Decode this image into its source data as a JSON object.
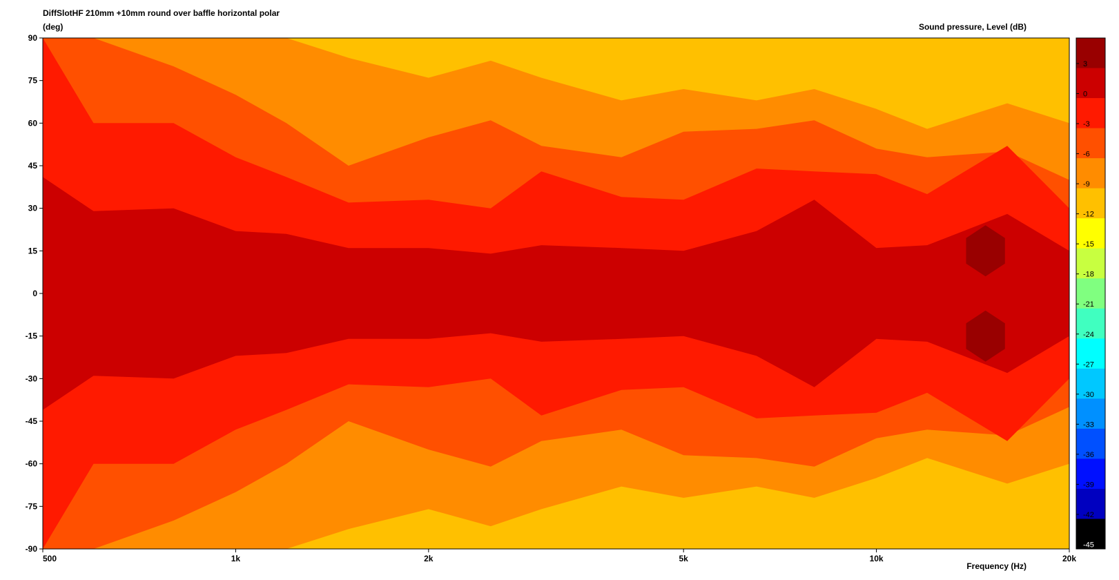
{
  "chart_data": {
    "type": "heatmap",
    "title": "DiffSlotHF 210mm +10mm round over baffle horizontal polar",
    "y_unit_label": "(deg)",
    "xlabel": "Frequency  (Hz)",
    "legend_title": "Sound pressure, Level  (dB)",
    "x_scale": "log",
    "xlim": [
      500,
      20000
    ],
    "ylim": [
      -90,
      90
    ],
    "x_ticks": [
      500,
      1000,
      2000,
      5000,
      10000,
      20000
    ],
    "x_tick_labels": [
      "500",
      "1k",
      "2k",
      "5k",
      "10k",
      "20k"
    ],
    "y_ticks": [
      90,
      75,
      60,
      45,
      30,
      15,
      0,
      -15,
      -30,
      -45,
      -60,
      -75,
      -90
    ],
    "y_tick_labels": [
      "90",
      "75",
      "60",
      "45",
      "30",
      "15",
      "0",
      "-15",
      "-30",
      "-45",
      "-60",
      "-75",
      "-90"
    ],
    "colorbar": {
      "levels": [
        3,
        0,
        -3,
        -6,
        -9,
        -12,
        -15,
        -18,
        -21,
        -24,
        -27,
        -30,
        -33,
        -36,
        -39,
        -42,
        -45
      ],
      "labels": [
        "3",
        "0",
        "-3",
        "-6",
        "-9",
        "-12",
        "-15",
        "-18",
        "-21",
        "-24",
        "-27",
        "-30",
        "-33",
        "-36",
        "-39",
        "-42",
        "-45"
      ],
      "colors": [
        "#990000",
        "#cc0000",
        "#ff1a00",
        "#ff5000",
        "#ff8c00",
        "#ffc000",
        "#ffff00",
        "#c8ff40",
        "#80ff80",
        "#40ffc0",
        "#00ffff",
        "#00c8ff",
        "#0090ff",
        "#0050ff",
        "#0010ff",
        "#0000c0",
        "#000000"
      ]
    },
    "contours": {
      "frequencies_hz": [
        500,
        600,
        800,
        1000,
        1200,
        1500,
        2000,
        2500,
        3000,
        4000,
        5000,
        6500,
        8000,
        10000,
        12000,
        16000,
        20000
      ],
      "level_0_db_boundary_deg": [
        41,
        29,
        30,
        22,
        21,
        16,
        16,
        14,
        17,
        16,
        15,
        22,
        33,
        16,
        17,
        28,
        15
      ],
      "level_minus3_db_boundary_deg": [
        90,
        60,
        60,
        48,
        41,
        32,
        33,
        30,
        43,
        34,
        33,
        44,
        43,
        42,
        35,
        52,
        30
      ],
      "level_minus6_db_boundary_deg": [
        90,
        90,
        80,
        70,
        60,
        45,
        55,
        61,
        52,
        48,
        57,
        58,
        61,
        51,
        48,
        50,
        40
      ],
      "level_minus9_db_boundary_deg": [
        90,
        90,
        90,
        90,
        90,
        83,
        76,
        82,
        76,
        68,
        72,
        68,
        72,
        65,
        58,
        67,
        60
      ],
      "level_minus12_db_boundary_deg": [
        90,
        90,
        90,
        90,
        90,
        90,
        90,
        90,
        90,
        82,
        86,
        80,
        84,
        77,
        72,
        80,
        72
      ]
    },
    "grid": false,
    "colorbar_position": "right"
  }
}
